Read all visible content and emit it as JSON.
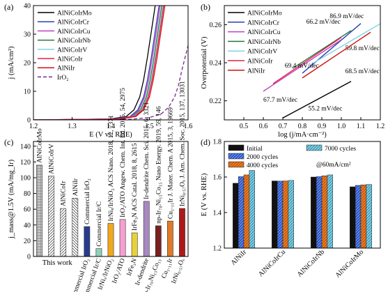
{
  "chart_data": [
    {
      "panel": "(a)",
      "type": "line",
      "xlabel": "E (V vs. RHE)",
      "ylabel": "j (mA/cm²)",
      "xlim": [
        1.2,
        1.6
      ],
      "ylim": [
        0,
        40
      ],
      "xticks": [
        "1.2",
        "1.3",
        "1.4",
        "1.5",
        "1.6"
      ],
      "yticks": [
        "0",
        "10",
        "20",
        "30",
        "40"
      ],
      "legend": "top-left",
      "series": [
        {
          "name": "AlNiCoIrMo",
          "color": "#000000",
          "dash": "",
          "x": [
            1.2,
            1.4,
            1.44,
            1.46,
            1.475,
            1.485,
            1.495,
            1.505,
            1.515
          ],
          "y": [
            0,
            0.3,
            1.2,
            3.5,
            8,
            14,
            22,
            31,
            40
          ]
        },
        {
          "name": "AlNiCoIrCr",
          "color": "#2a3db5",
          "dash": "",
          "x": [
            1.2,
            1.41,
            1.45,
            1.47,
            1.485,
            1.495,
            1.505,
            1.515,
            1.525
          ],
          "y": [
            0,
            0.3,
            1.2,
            3.5,
            8,
            14,
            22,
            31,
            40
          ]
        },
        {
          "name": "AlNiCoIrCu",
          "color": "#c040c0",
          "dash": "",
          "x": [
            1.2,
            1.41,
            1.453,
            1.473,
            1.488,
            1.498,
            1.508,
            1.518,
            1.528
          ],
          "y": [
            0,
            0.3,
            1.2,
            3.5,
            8,
            14,
            22,
            31,
            40
          ]
        },
        {
          "name": "AlNiCoIrNb",
          "color": "#1f7a3f",
          "dash": "",
          "x": [
            1.2,
            1.42,
            1.457,
            1.477,
            1.492,
            1.502,
            1.512,
            1.522,
            1.532
          ],
          "y": [
            0,
            0.3,
            1.2,
            3.5,
            8,
            14,
            22,
            31,
            40
          ]
        },
        {
          "name": "AlNiCoIrV",
          "color": "#7fd3e6",
          "dash": "",
          "x": [
            1.2,
            1.42,
            1.46,
            1.48,
            1.495,
            1.505,
            1.515,
            1.525,
            1.535
          ],
          "y": [
            0,
            0.3,
            1.2,
            3.5,
            8,
            14,
            22,
            31,
            40
          ]
        },
        {
          "name": "AlNiCoIr",
          "color": "#e0204a",
          "dash": "",
          "x": [
            1.2,
            1.42,
            1.462,
            1.482,
            1.497,
            1.507,
            1.517,
            1.527,
            1.537
          ],
          "y": [
            0,
            0.3,
            1.2,
            3.5,
            8,
            14,
            22,
            31,
            40
          ]
        },
        {
          "name": "AlNiIr",
          "color": "#d01010",
          "dash": "",
          "x": [
            1.2,
            1.425,
            1.465,
            1.485,
            1.5,
            1.51,
            1.52,
            1.53,
            1.54
          ],
          "y": [
            0,
            0.3,
            1.2,
            3.5,
            8,
            14,
            22,
            31,
            40
          ]
        },
        {
          "name": "IrO₂",
          "color": "#7a2a8a",
          "dash": "5,3",
          "x": [
            1.2,
            1.45,
            1.5,
            1.53,
            1.55,
            1.565,
            1.575,
            1.585,
            1.6
          ],
          "y": [
            0,
            0.2,
            0.8,
            2,
            4.5,
            8,
            12,
            18,
            26
          ]
        }
      ]
    },
    {
      "panel": "(b)",
      "type": "line",
      "xlabel": "log (j/mA·cm⁻²)",
      "ylabel": "Overpotential (V)",
      "xlim": [
        0.4,
        1.2
      ],
      "ylim": [
        0.21,
        0.27
      ],
      "xticks": [
        "0.5",
        "0.6",
        "0.7",
        "0.8",
        "0.9",
        "1.0",
        "1.1",
        "1.2"
      ],
      "yticks": [
        "0.22",
        "0.24",
        "0.26"
      ],
      "legend": "top-left",
      "series": [
        {
          "name": "AlNiCoIrMo",
          "color": "#000000",
          "x": [
            0.7,
            1.05
          ],
          "y": [
            0.211,
            0.2302
          ],
          "label": "55.2 mV/dec"
        },
        {
          "name": "AlNiCoIrCr",
          "color": "#2a3db5",
          "x": [
            0.8,
            1.1
          ],
          "y": [
            0.2345,
            0.2606
          ],
          "label": "86.9 mV/dec"
        },
        {
          "name": "AlNiCoIrCu",
          "color": "#c040c0",
          "x": [
            0.6,
            1.0
          ],
          "y": [
            0.225,
            0.2521
          ],
          "label": "67.7 mV/dec"
        },
        {
          "name": "AlNiCoIrNb",
          "color": "#1f7a3f",
          "x": [
            0.75,
            1.05
          ],
          "y": [
            0.237,
            0.2569
          ],
          "label": "66.2 mV/dec"
        },
        {
          "name": "AlNiCoIrV",
          "color": "#7fd3e6",
          "x": [
            0.85,
            1.2
          ],
          "y": [
            0.2395,
            0.2605
          ],
          "label": "59.8 mV/dec"
        },
        {
          "name": "AlNiCoIr",
          "color": "#e0204a",
          "x": [
            0.65,
            1.0
          ],
          "y": [
            0.229,
            0.2533
          ],
          "label": "69.4 mV/dec"
        },
        {
          "name": "AlNiIr",
          "color": "#d01010",
          "x": [
            0.8,
            1.15
          ],
          "y": [
            0.232,
            0.256
          ],
          "label": "68.5 mV/dec"
        }
      ]
    },
    {
      "panel": "(c)",
      "type": "bar",
      "ylabel": "j_mass@1.5V (mA/mg_Ir)",
      "ylim": [
        0,
        146
      ],
      "yticks": [
        "0",
        "20",
        "40",
        "60",
        "80",
        "100",
        "120",
        "140"
      ],
      "annotation": "This work",
      "categories": [
        "AlNiCoIrMo",
        "AlNiCoIrV",
        "AlNiCoIr",
        "AlNiIr",
        "Commercial IrO₂",
        "Commercial Ir/C",
        "IrNiₓ/IrNiO₂",
        "IrO₂/ATO",
        "IrFe₃N",
        "Ir-dendrite",
        "np-Ir₇₀Ni₁₅Co₁₅",
        "Cu₁.₁₁Ir",
        "IrNi₀.₅₇Oₓ"
      ],
      "values": [
        116,
        102,
        61,
        74,
        38,
        10,
        42,
        47,
        30,
        70,
        39,
        45,
        61
      ],
      "references": [
        "",
        "",
        "",
        "",
        "",
        "",
        "ACS Nano. 2018, 12, 7371",
        "Angew. Chem. Int. Ed. 2015, 54, 2975",
        "ACS Catal. 2018, 8, 2615",
        "Chem. Sci. 2015, 6, 3321",
        "Nano Energy. 2019, 59, 146",
        "J. Mater. Chem. A 2015, 3, 19669",
        "J. Am. Chem. Soc. 2015, 137, 13031"
      ],
      "fills": [
        "#bdbdbd",
        "#ffffff",
        "#ffffff",
        "#ffffff",
        "#283c8c",
        "#8fd0b8",
        "#f2a81d",
        "#f5a0d0",
        "#e8d23a",
        "#a888c0",
        "#7a1f1f",
        "#e07a28",
        "#b01818"
      ],
      "label_colors": [
        "#000000",
        "#e03a2a",
        "#e03a2a",
        "#e03a2a",
        "#000000",
        "#000000",
        "#000000",
        "#000000",
        "#000000",
        "#000000",
        "#000000",
        "#000000",
        "#000000"
      ]
    },
    {
      "panel": "(d)",
      "type": "bar",
      "ylabel": "E (V vs. RHE)",
      "ylim": [
        1.2,
        1.8
      ],
      "yticks": [
        "1.2",
        "1.4",
        "1.6",
        "1.8"
      ],
      "annotation": "@60mA/cm²",
      "legend": "top",
      "categories": [
        "AlNiIr",
        "AlNiCoIrCu",
        "AlNiCoIrNb",
        "AlNiCoIrMo"
      ],
      "series": [
        {
          "name": "Initial",
          "color": "#111111",
          "values": [
            1.565,
            1.578,
            1.6,
            1.545
          ]
        },
        {
          "name": "2000 cycles",
          "color": "#2a55c8",
          "values": [
            1.602,
            1.577,
            1.602,
            1.553
          ]
        },
        {
          "name": "4000 cycles",
          "color": "#ee7a22",
          "values": [
            1.612,
            1.578,
            1.607,
            1.556
          ]
        },
        {
          "name": "7000 cycles",
          "color": "#7fd0e6",
          "values": [
            1.637,
            1.581,
            1.612,
            1.558
          ]
        }
      ]
    }
  ]
}
